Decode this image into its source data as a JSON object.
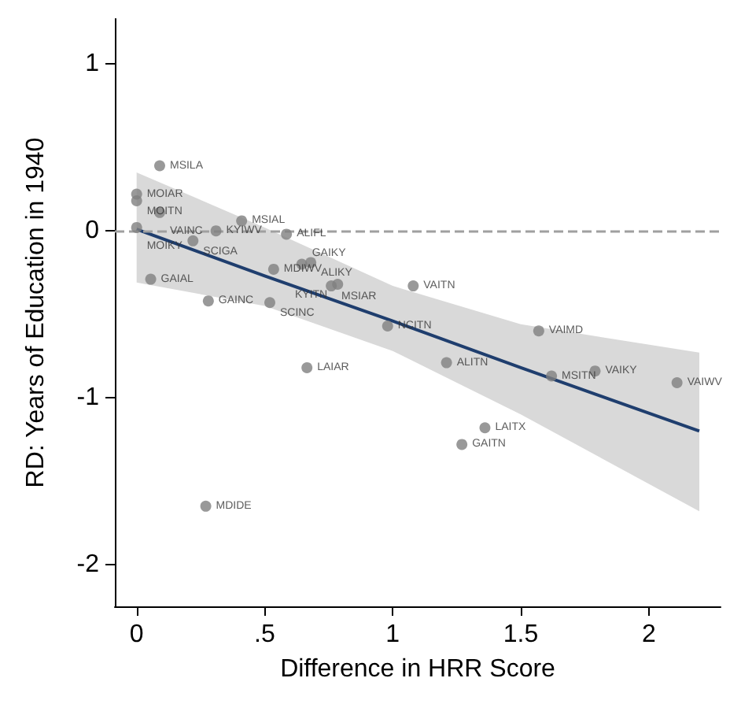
{
  "chart_data": {
    "type": "scatter",
    "xlabel": "Difference in HRR Score",
    "ylabel": "RD: Years of Education in 1940",
    "xlim": [
      -0.085,
      2.28
    ],
    "ylim": [
      -2.25,
      1.27
    ],
    "xticks": [
      0,
      {
        "value": 0.5,
        "label": ".5"
      },
      1,
      1.5,
      2
    ],
    "yticks": [
      -2,
      -1,
      0,
      1
    ],
    "grid": false,
    "marker": "circle",
    "ref_lines": [
      {
        "axis": "y",
        "value": 0,
        "color": "#a0a0a0",
        "line_style": "dashed"
      }
    ],
    "series": [
      {
        "color": "#808080",
        "x": [
          0.09,
          0,
          0,
          0.09,
          0.41,
          0,
          0.22,
          0.31,
          0.585,
          0.055,
          0.535,
          0.645,
          0.68,
          0.76,
          0.785,
          1.08,
          0.28,
          0.52,
          0.98,
          1.57,
          1.21,
          1.62,
          1.79,
          2.11,
          1.36,
          1.27,
          0.665,
          0.27
        ],
        "values": [
          0.39,
          0.22,
          0.18,
          0.11,
          0.06,
          0.02,
          -0.06,
          0.0,
          -0.02,
          -0.29,
          -0.23,
          -0.2,
          -0.19,
          -0.33,
          -0.32,
          -0.33,
          -0.42,
          -0.43,
          -0.57,
          -0.6,
          -0.79,
          -0.87,
          -0.84,
          -0.91,
          -1.18,
          -1.28,
          -0.82,
          -1.65
        ],
        "value_labels": [
          "MSILA",
          "MOIAR",
          "MOITN",
          "VAINC",
          "MSIAL",
          "MOIKY",
          "SCIGA",
          "KYIWV",
          "ALIFL",
          "GAIAL",
          "MDIWV",
          "GAIKY",
          "ALIKY",
          "MSIAR",
          "KYITN",
          "VAITN",
          "GAINC",
          "SCINC",
          "NCITN",
          "VAIMD",
          "ALITN",
          "MSITN",
          "VAIKY",
          "VAIWV",
          "LAITX",
          "GAITN",
          "LAIAR",
          "MDIDE"
        ]
      },
      {
        "type": "line",
        "marker": "none",
        "color": "#1f3e6e",
        "x": [
          0,
          0.5,
          1,
          1.5,
          2.197
        ],
        "values": [
          0.01,
          -0.27,
          -0.54,
          -0.82,
          -1.2
        ],
        "lower": [
          -0.31,
          -0.45,
          -0.72,
          -1.1,
          -1.68
        ],
        "upper": [
          0.35,
          0.02,
          -0.33,
          -0.56,
          -0.73
        ]
      }
    ]
  }
}
